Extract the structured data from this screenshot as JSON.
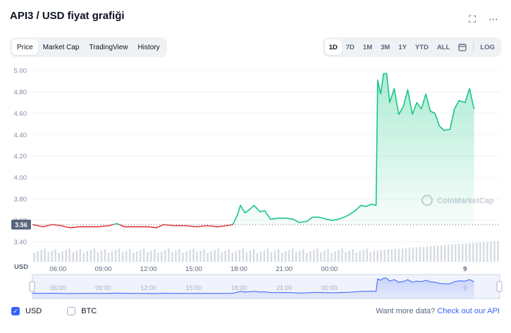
{
  "title": "API3 / USD fiyat grafiği",
  "icons": {
    "fullscreen": "fullscreen-icon",
    "more": "more-icon",
    "calendar": "calendar-icon"
  },
  "tabs": [
    {
      "label": "Price",
      "active": true
    },
    {
      "label": "Market Cap",
      "active": false
    },
    {
      "label": "TradingView",
      "active": false
    },
    {
      "label": "History",
      "active": false
    }
  ],
  "ranges": [
    "1D",
    "7D",
    "1M",
    "3M",
    "1Y",
    "YTD",
    "ALL"
  ],
  "active_range": "1D",
  "log_label": "LOG",
  "watermark": "CoinMarketCap",
  "volume_label": "USD",
  "currency_toggles": [
    {
      "label": "USD",
      "checked": true
    },
    {
      "label": "BTC",
      "checked": false
    }
  ],
  "api_text": "Want more data?",
  "api_link": "Check out our API",
  "colors": {
    "up": "#16c784",
    "down": "#ea3943",
    "accent": "#3861fb",
    "baseline_badge": "#58667e"
  },
  "chart_data": {
    "type": "line",
    "baseline_value": 3.56,
    "baseline_label": "3.56",
    "ylim": [
      3.33,
      5.04
    ],
    "y_ticks": [
      5.0,
      4.8,
      4.6,
      4.4,
      4.2,
      4.0,
      3.8,
      3.6,
      3.4
    ],
    "y_tick_labels": [
      "5.00",
      "4.80",
      "4.60",
      "4.40",
      "4.20",
      "4.00",
      "3.80",
      "3.60",
      "3.40"
    ],
    "xlim": [
      4.3,
      35.3
    ],
    "x_tick_positions": [
      6,
      9,
      12,
      15,
      18,
      21,
      24,
      33
    ],
    "x_tick_labels": [
      "06:00",
      "09:00",
      "12:00",
      "15:00",
      "18:00",
      "21:00",
      "00:00",
      "9"
    ],
    "navigator_ticks": [
      "06:00",
      "09:00",
      "12:00",
      "15:00",
      "18:00",
      "21:00",
      "00:00",
      "9"
    ],
    "series": [
      {
        "x": 4.3,
        "y": 3.56
      },
      {
        "x": 5.0,
        "y": 3.54
      },
      {
        "x": 5.6,
        "y": 3.56
      },
      {
        "x": 6.2,
        "y": 3.55
      },
      {
        "x": 6.8,
        "y": 3.53
      },
      {
        "x": 7.4,
        "y": 3.54
      },
      {
        "x": 8.0,
        "y": 3.54
      },
      {
        "x": 8.6,
        "y": 3.54
      },
      {
        "x": 9.4,
        "y": 3.55
      },
      {
        "x": 9.9,
        "y": 3.57
      },
      {
        "x": 10.4,
        "y": 3.54
      },
      {
        "x": 11.2,
        "y": 3.54
      },
      {
        "x": 12.0,
        "y": 3.54
      },
      {
        "x": 12.5,
        "y": 3.53
      },
      {
        "x": 13.0,
        "y": 3.56
      },
      {
        "x": 13.6,
        "y": 3.55
      },
      {
        "x": 14.4,
        "y": 3.55
      },
      {
        "x": 15.2,
        "y": 3.54
      },
      {
        "x": 15.9,
        "y": 3.55
      },
      {
        "x": 16.6,
        "y": 3.54
      },
      {
        "x": 17.2,
        "y": 3.55
      },
      {
        "x": 17.6,
        "y": 3.56
      },
      {
        "x": 17.9,
        "y": 3.65
      },
      {
        "x": 18.1,
        "y": 3.74
      },
      {
        "x": 18.4,
        "y": 3.67
      },
      {
        "x": 18.7,
        "y": 3.7
      },
      {
        "x": 19.0,
        "y": 3.74
      },
      {
        "x": 19.4,
        "y": 3.68
      },
      {
        "x": 19.7,
        "y": 3.69
      },
      {
        "x": 20.1,
        "y": 3.61
      },
      {
        "x": 20.6,
        "y": 3.62
      },
      {
        "x": 21.2,
        "y": 3.62
      },
      {
        "x": 21.6,
        "y": 3.61
      },
      {
        "x": 22.0,
        "y": 3.58
      },
      {
        "x": 22.5,
        "y": 3.59
      },
      {
        "x": 22.9,
        "y": 3.63
      },
      {
        "x": 23.3,
        "y": 3.63
      },
      {
        "x": 23.8,
        "y": 3.61
      },
      {
        "x": 24.2,
        "y": 3.6
      },
      {
        "x": 24.6,
        "y": 3.61
      },
      {
        "x": 25.0,
        "y": 3.63
      },
      {
        "x": 25.4,
        "y": 3.66
      },
      {
        "x": 25.8,
        "y": 3.7
      },
      {
        "x": 26.1,
        "y": 3.74
      },
      {
        "x": 26.4,
        "y": 3.73
      },
      {
        "x": 26.8,
        "y": 3.75
      },
      {
        "x": 27.1,
        "y": 3.74
      },
      {
        "x": 27.2,
        "y": 4.91
      },
      {
        "x": 27.4,
        "y": 4.78
      },
      {
        "x": 27.6,
        "y": 4.97
      },
      {
        "x": 27.8,
        "y": 4.97
      },
      {
        "x": 28.0,
        "y": 4.7
      },
      {
        "x": 28.3,
        "y": 4.83
      },
      {
        "x": 28.6,
        "y": 4.59
      },
      {
        "x": 28.9,
        "y": 4.66
      },
      {
        "x": 29.2,
        "y": 4.82
      },
      {
        "x": 29.5,
        "y": 4.59
      },
      {
        "x": 29.8,
        "y": 4.7
      },
      {
        "x": 30.1,
        "y": 4.64
      },
      {
        "x": 30.4,
        "y": 4.78
      },
      {
        "x": 30.7,
        "y": 4.62
      },
      {
        "x": 31.0,
        "y": 4.6
      },
      {
        "x": 31.3,
        "y": 4.48
      },
      {
        "x": 31.6,
        "y": 4.44
      },
      {
        "x": 32.0,
        "y": 4.45
      },
      {
        "x": 32.3,
        "y": 4.64
      },
      {
        "x": 32.6,
        "y": 4.72
      },
      {
        "x": 33.0,
        "y": 4.7
      },
      {
        "x": 33.3,
        "y": 4.83
      },
      {
        "x": 33.6,
        "y": 4.64
      }
    ]
  }
}
